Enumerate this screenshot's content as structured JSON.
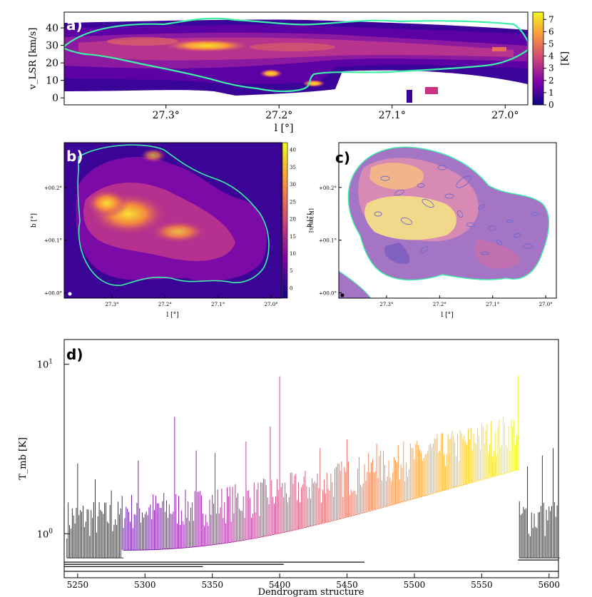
{
  "chart_data": [
    {
      "panel": "a",
      "type": "heatmap",
      "panel_label": "a)",
      "xlabel": "l [°]",
      "ylabel": "v_LSR [km/s]",
      "x_ticks": [
        "27.3°",
        "27.2°",
        "27.1°",
        "27.0°"
      ],
      "x_tick_values": [
        27.3,
        27.2,
        27.1,
        27.0
      ],
      "xlim": [
        27.39,
        26.98
      ],
      "y_ticks": [
        "0",
        "10",
        "20",
        "30",
        "40"
      ],
      "ylim": [
        -4,
        49
      ],
      "colorbar": {
        "label": "[K]",
        "ticks": [
          "0",
          "1",
          "2",
          "3",
          "4",
          "5",
          "6",
          "7"
        ],
        "range": [
          0,
          7.6
        ],
        "colormap": "plasma"
      },
      "contour_color": "#3ef0a8"
    },
    {
      "panel": "b",
      "type": "heatmap",
      "panel_label": "b)",
      "xlabel": "l [°]",
      "ylabel": "b [°]",
      "x_ticks": [
        "27.3°",
        "27.2°",
        "27.1°",
        "27.0°"
      ],
      "xlim": [
        27.39,
        26.98
      ],
      "y_ticks": [
        "+00.0°",
        "+00.1°",
        "+00.2°"
      ],
      "ylim": [
        -0.01,
        0.285
      ],
      "colorbar": {
        "label": "[K km/s]",
        "ticks": [
          "0",
          "5",
          "10",
          "15",
          "20",
          "25",
          "30",
          "35",
          "40"
        ],
        "range": [
          -3,
          42
        ],
        "colormap": "plasma"
      },
      "contour_color": "#3ef0a8"
    },
    {
      "panel": "c",
      "type": "heatmap",
      "panel_label": "c)",
      "xlabel": "l [°]",
      "ylabel": "b [°]",
      "x_ticks": [
        "27.3°",
        "27.2°",
        "27.1°",
        "27.0°"
      ],
      "xlim": [
        27.39,
        26.98
      ],
      "y_ticks": [
        "+00.0°",
        "+00.1°",
        "+00.2°"
      ],
      "ylim": [
        -0.01,
        0.285
      ],
      "contour_color": "#3ef0a8",
      "ellipse_color": "#6a6ad0"
    },
    {
      "panel": "d",
      "type": "line",
      "panel_label": "d)",
      "xlabel": "Dendrogram structure",
      "ylabel": "T_mb [K]",
      "xlim": [
        5240,
        5607
      ],
      "x_ticks": [
        5250,
        5300,
        5350,
        5400,
        5450,
        5500,
        5550,
        5600
      ],
      "y_scale": "log",
      "ylim": [
        0.55,
        14
      ],
      "y_ticks": [
        {
          "label": "10",
          "sup": "0",
          "value": 1
        },
        {
          "label": "10",
          "sup": "1",
          "value": 10
        }
      ],
      "trunk_levels": [
        0.6,
        0.64,
        0.66,
        0.68
      ],
      "colored_range": [
        5283,
        5577
      ],
      "black_ranges": [
        [
          5240,
          5283
        ],
        [
          5577,
          5607
        ]
      ],
      "peak_structures": [
        {
          "x": 5250,
          "y": 2.6
        },
        {
          "x": 5263,
          "y": 2.1
        },
        {
          "x": 5275,
          "y": 1.8
        },
        {
          "x": 5295,
          "y": 2.7
        },
        {
          "x": 5322,
          "y": 4.9
        },
        {
          "x": 5338,
          "y": 3.1
        },
        {
          "x": 5352,
          "y": 3.0
        },
        {
          "x": 5375,
          "y": 3.5
        },
        {
          "x": 5393,
          "y": 4.3
        },
        {
          "x": 5400,
          "y": 8.5
        },
        {
          "x": 5430,
          "y": 3.2
        },
        {
          "x": 5450,
          "y": 3.6
        },
        {
          "x": 5472,
          "y": 3.4
        },
        {
          "x": 5492,
          "y": 3.5
        },
        {
          "x": 5512,
          "y": 3.4
        },
        {
          "x": 5530,
          "y": 3.5
        },
        {
          "x": 5547,
          "y": 4.2
        },
        {
          "x": 5560,
          "y": 4.0
        },
        {
          "x": 5577,
          "y": 8.6
        },
        {
          "x": 5584,
          "y": 2.5
        },
        {
          "x": 5595,
          "y": 2.9
        },
        {
          "x": 5603,
          "y": 3.2
        }
      ]
    }
  ]
}
